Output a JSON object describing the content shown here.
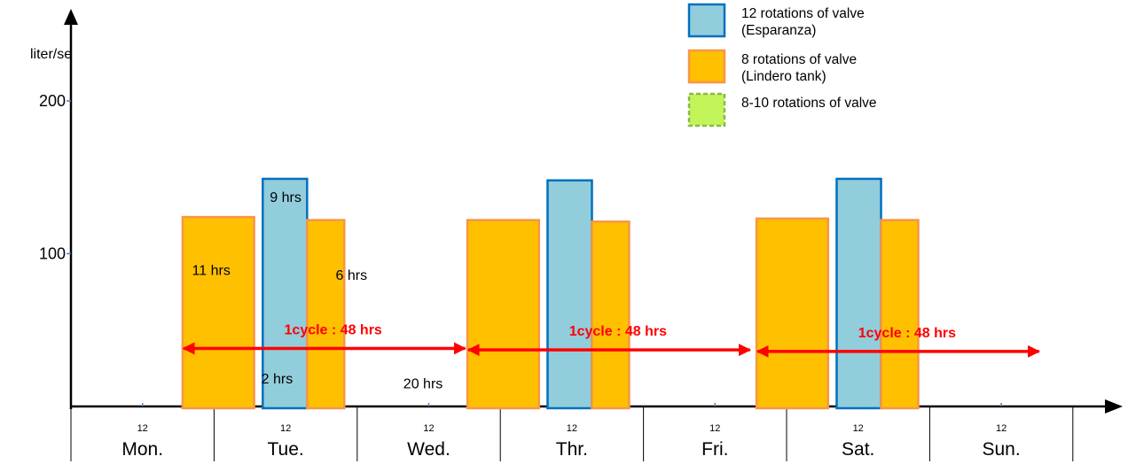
{
  "chart_data": {
    "type": "bar",
    "ylabel": "liter/se",
    "yticks": [
      200,
      100
    ],
    "ylim": [
      0,
      240
    ],
    "days": [
      "Mon.",
      "Tue.",
      "Wed.",
      "Thr.",
      "Fri.",
      "Sat.",
      "Sun."
    ],
    "hour_label": "12",
    "legend": [
      {
        "label": "12 rotations of valve",
        "sub": "(Esparanza)",
        "fill": "#92cddc",
        "stroke": "#0070c0",
        "dashed": false
      },
      {
        "label": "8 rotations of valve",
        "sub": "(Lindero tank)",
        "fill": "#ffc000",
        "stroke": "#f79646",
        "dashed": false
      },
      {
        "label": "8-10 rotations of valve",
        "sub": "",
        "fill": "#c2f55a",
        "stroke": "#8bb84a",
        "dashed": true
      }
    ],
    "bars": [
      {
        "series": "Lindero tank",
        "start_day": 0.78,
        "end_day": 1.28,
        "value": 124
      },
      {
        "series": "Esparanza",
        "start_day": 1.34,
        "end_day": 1.65,
        "value": 149
      },
      {
        "series": "Lindero tank",
        "start_day": 1.65,
        "end_day": 1.91,
        "value": 122
      },
      {
        "series": "Lindero tank",
        "start_day": 2.77,
        "end_day": 3.27,
        "value": 122
      },
      {
        "series": "Esparanza",
        "start_day": 3.33,
        "end_day": 3.64,
        "value": 148
      },
      {
        "series": "Lindero tank",
        "start_day": 3.64,
        "end_day": 3.9,
        "value": 121
      },
      {
        "series": "Lindero tank",
        "start_day": 4.79,
        "end_day": 5.29,
        "value": 123
      },
      {
        "series": "Esparanza",
        "start_day": 5.35,
        "end_day": 5.66,
        "value": 149
      },
      {
        "series": "Lindero tank",
        "start_day": 5.66,
        "end_day": 5.92,
        "value": 122
      }
    ],
    "durations": [
      {
        "text": "11 hrs",
        "day": 0.98,
        "value": 86
      },
      {
        "text": "9 hrs",
        "day": 1.5,
        "value": 134
      },
      {
        "text": "6 hrs",
        "day": 1.96,
        "value": 83
      },
      {
        "text": "2 hrs",
        "day": 1.44,
        "value": 15
      },
      {
        "text": "20 hrs",
        "day": 2.46,
        "value": 12
      }
    ],
    "cycles": [
      {
        "label": "1cycle : 48 hrs",
        "start_day": 0.78,
        "end_day": 2.76,
        "value": 38
      },
      {
        "label": "1cycle : 48 hrs",
        "start_day": 2.77,
        "end_day": 4.75,
        "value": 37
      },
      {
        "label": "1cycle : 48 hrs",
        "start_day": 4.79,
        "end_day": 6.77,
        "value": 36
      }
    ]
  }
}
